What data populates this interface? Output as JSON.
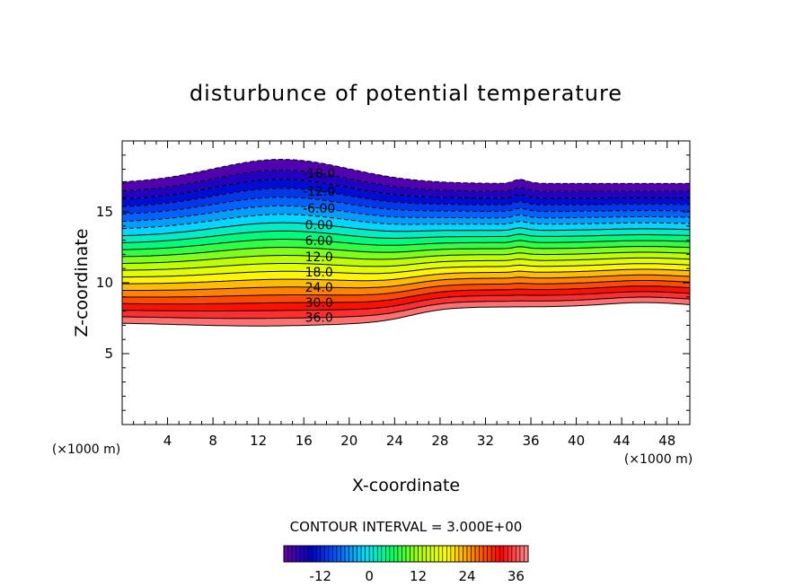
{
  "chart_data": {
    "type": "contour",
    "title": "disturbunce of potential temperature",
    "xlabel": "X-coordinate",
    "ylabel": "Z-coordinate",
    "x_unit": "(×1000 m)",
    "z_unit": "(×1000 m)",
    "xlim": [
      0,
      50
    ],
    "ylim": [
      0,
      20
    ],
    "x_ticks": [
      4,
      8,
      12,
      16,
      20,
      24,
      28,
      32,
      36,
      40,
      44,
      48
    ],
    "y_ticks": [
      5,
      10,
      15
    ],
    "contour_interval_label": "CONTOUR INTERVAL = 3.000E+00",
    "contour_interval": 3,
    "level_range": [
      -21,
      39
    ],
    "contour_labels": [
      {
        "text": "-18.0",
        "value": -18,
        "x": 17.5
      },
      {
        "text": "-12.0",
        "value": -12,
        "x": 17.5
      },
      {
        "text": "-6.00",
        "value": -6,
        "x": 17.5
      },
      {
        "text": "0.00",
        "value": 0,
        "x": 17.5
      },
      {
        "text": "6.00",
        "value": 6,
        "x": 17.5
      },
      {
        "text": "12.0",
        "value": 12,
        "x": 17.5
      },
      {
        "text": "18.0",
        "value": 18,
        "x": 17.5
      },
      {
        "text": "24.0",
        "value": 24,
        "x": 17.5
      },
      {
        "text": "30.0",
        "value": 30,
        "x": 17.5
      },
      {
        "text": "36.0",
        "value": 36,
        "x": 17.5
      }
    ],
    "colorbar": {
      "tick_labels": [
        "-12",
        "0",
        "12",
        "24",
        "36"
      ],
      "tick_values": [
        -12,
        0,
        12,
        24,
        36
      ],
      "range": [
        -21,
        39
      ],
      "colors": [
        "#6a00a8",
        "#0000c8",
        "#0060ff",
        "#00e0ff",
        "#00ff60",
        "#b0ff00",
        "#ffff00",
        "#ff8000",
        "#ff0000",
        "#ff9090"
      ]
    }
  }
}
